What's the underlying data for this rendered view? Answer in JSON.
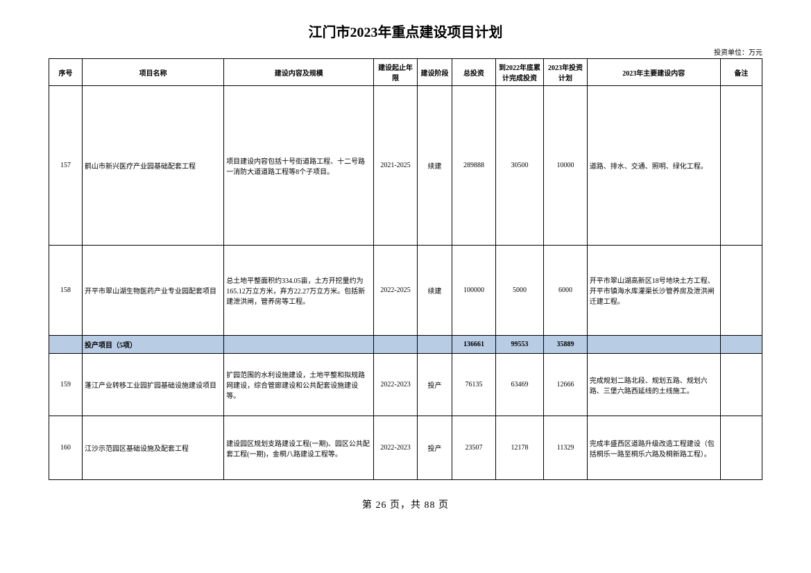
{
  "title": "江门市2023年重点建设项目计划",
  "unit": "投资单位：万元",
  "headers": {
    "seq": "序号",
    "name": "项目名称",
    "content": "建设内容及规模",
    "period": "建设起止年限",
    "phase": "建设阶段",
    "total": "总投资",
    "acc": "到2022年底累计完成投资",
    "plan": "2023年投资计划",
    "main": "2023年主要建设内容",
    "remark": "备注"
  },
  "rows": [
    {
      "seq": "157",
      "name": "鹤山市新兴医疗产业园基础配套工程",
      "content": "项目建设内容包括十号街道路工程、十二号路一消防大道道路工程等8个子项目。",
      "period": "2021-2025",
      "phase": "续建",
      "total": "289888",
      "acc": "30500",
      "plan": "10000",
      "main": "道路、排水、交通、照明、绿化工程。",
      "remark": "",
      "cls": "row-tall"
    },
    {
      "seq": "158",
      "name": "开平市翠山湖生物医药产业专业园配套项目",
      "content": "总土地平整面积约334.05亩，土方开挖量约为165.12万立方米，弃方22.27万立方米。包括新建泄洪闸，管养房等工程。",
      "period": "2022-2025",
      "phase": "续建",
      "total": "100000",
      "acc": "5000",
      "plan": "6000",
      "main": "开平市翠山湖高新区18号地块土方工程、开平市镇海水库灌渠长沙管养房及泄洪闸迁建工程。",
      "remark": "",
      "cls": "row-med"
    }
  ],
  "subtotal": {
    "label": "投产项目（5项）",
    "total": "136661",
    "acc": "99553",
    "plan": "35889"
  },
  "rows2": [
    {
      "seq": "159",
      "name": "蓬江产业转移工业园扩园基础设施建设项目",
      "content": "扩园范围的水利设施建设，土地平整和拟规路网建设，综合管廊建设和公共配套设施建设等。",
      "period": "2022-2023",
      "phase": "投产",
      "total": "76135",
      "acc": "63469",
      "plan": "12666",
      "main": "完成规划二路北段、规划五路、规划六路、三堡六路西延线的土线施工。",
      "remark": "",
      "cls": "row-low"
    },
    {
      "seq": "160",
      "name": "江沙示范园区基础设施及配套工程",
      "content": "建设园区规划支路建设工程(一期)、园区公共配套工程(一期)，金桐八路建设工程等。",
      "period": "2022-2023",
      "phase": "投产",
      "total": "23507",
      "acc": "12178",
      "plan": "11329",
      "main": "完成丰盛西区道路升级改造工程建设（包括桐乐一路至桐乐六路及桐新路工程）。",
      "remark": "",
      "cls": "row-low2"
    }
  ],
  "footer": "第 26 页，共 88 页"
}
